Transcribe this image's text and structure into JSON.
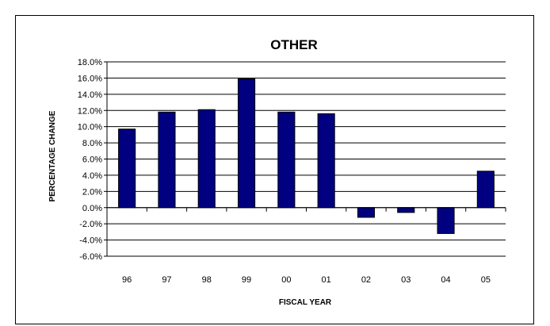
{
  "chart_data": {
    "type": "bar",
    "title": "OTHER",
    "xlabel": "FISCAL YEAR",
    "ylabel": "PERCENTAGE CHANGE",
    "categories": [
      "96",
      "97",
      "98",
      "99",
      "00",
      "01",
      "02",
      "03",
      "04",
      "05"
    ],
    "values": [
      9.7,
      11.8,
      12.1,
      15.9,
      11.8,
      11.6,
      -1.2,
      -0.6,
      -3.2,
      4.5
    ],
    "ylim": [
      -6,
      18
    ],
    "ytick_step": 2,
    "ytick_labels": [
      "-6.0%",
      "-4.0%",
      "-2.0%",
      "0.0%",
      "2.0%",
      "4.0%",
      "6.0%",
      "8.0%",
      "10.0%",
      "12.0%",
      "14.0%",
      "16.0%",
      "18.0%"
    ],
    "grid": true,
    "legend": "none",
    "colors": {
      "bar": "#000080",
      "bar_stroke": "#000000",
      "grid": "#000000"
    }
  }
}
